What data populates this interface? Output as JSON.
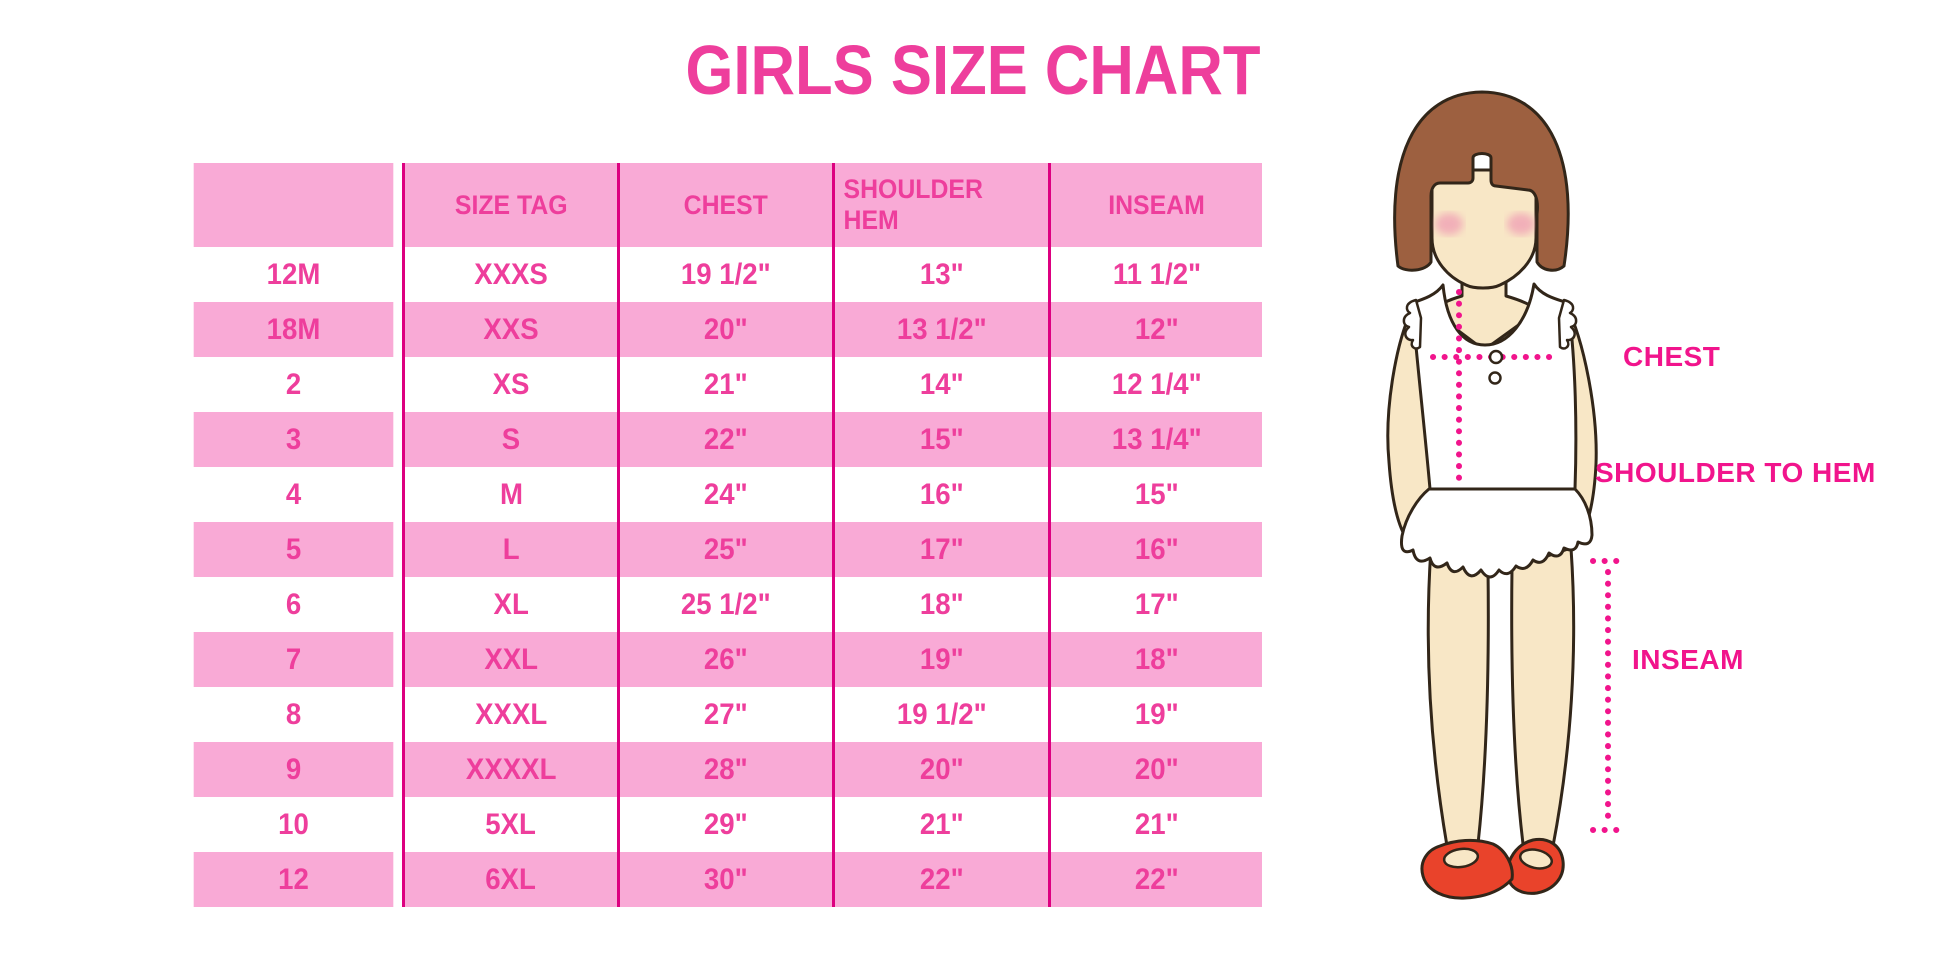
{
  "title": "GIRLS SIZE CHART",
  "colors": {
    "accent": "#ee3e9c",
    "row_pink": "#f9aad6",
    "line": "#dd0080",
    "dot": "#f1148c",
    "hair": "#9d6040",
    "skin": "#f8e7c6",
    "blush": "#f0a3b5",
    "shoe": "#e9432b",
    "outline": "#322619"
  },
  "chart_data": {
    "type": "table",
    "title": "GIRLS SIZE CHART",
    "columns": [
      "",
      "SIZE TAG",
      "CHEST",
      "SHOULDER HEM",
      "INSEAM"
    ],
    "rows": [
      [
        "12M",
        "XXXS",
        "19 1/2\"",
        "13\"",
        "11 1/2\""
      ],
      [
        "18M",
        "XXS",
        "20\"",
        "13 1/2\"",
        "12\""
      ],
      [
        "2",
        "XS",
        "21\"",
        "14\"",
        "12 1/4\""
      ],
      [
        "3",
        "S",
        "22\"",
        "15\"",
        "13 1/4\""
      ],
      [
        "4",
        "M",
        "24\"",
        "16\"",
        "15\""
      ],
      [
        "5",
        "L",
        "25\"",
        "17\"",
        "16\""
      ],
      [
        "6",
        "XL",
        "25 1/2\"",
        "18\"",
        "17\""
      ],
      [
        "7",
        "XXL",
        "26\"",
        "19\"",
        "18\""
      ],
      [
        "8",
        "XXXL",
        "27\"",
        "19 1/2\"",
        "19\""
      ],
      [
        "9",
        "XXXXL",
        "28\"",
        "20\"",
        "20\""
      ],
      [
        "10",
        "5XL",
        "29\"",
        "21\"",
        "21\""
      ],
      [
        "12",
        "6XL",
        "30\"",
        "22\"",
        "22\""
      ]
    ],
    "layout": {
      "striping": "header pink, then rows alternate white/pink starting white",
      "grid": "vertical magenta column separators only, no horizontal rules",
      "legend_position": "none"
    }
  },
  "figure": {
    "labels": {
      "chest": "CHEST",
      "shoulder_to_hem": "SHOULDER TO HEM",
      "inseam": "INSEAM"
    }
  }
}
